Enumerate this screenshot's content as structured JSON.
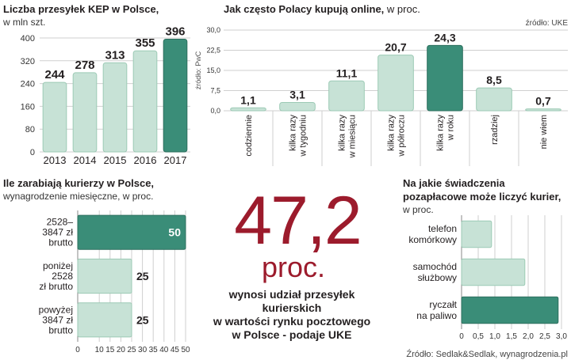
{
  "colors": {
    "bar_light": "#c7e2d6",
    "bar_light_stroke": "#9ccab5",
    "bar_dark": "#3a8d78",
    "bar_dark_stroke": "#2d6f5e",
    "accent": "#9c1b2c",
    "grid": "#cfcfcf"
  },
  "kep": {
    "title": "Liczba przesyłek KEP w Polsce,",
    "subtitle": "w mln szt."
  },
  "online": {
    "title": "Jak często Polacy kupują online,",
    "title_suffix": " w proc.",
    "source": "źródło: UKE",
    "pwc_source": "źródło: PwC"
  },
  "earnings": {
    "title": "Ile zarabiają kurierzy w Polsce,",
    "subtitle": "wynagrodzenie miesięczne, w proc."
  },
  "benefits": {
    "title_line1": "Na jakie świadczenia",
    "title_line2": "pozapłacowe może liczyć kurier,",
    "subtitle": "w proc."
  },
  "highlight": {
    "number": "47,2",
    "unit": "proc.",
    "line1": "wynosi udział przesyłek",
    "line2": "kurierskich",
    "line3": "w wartości rynku pocztowego",
    "line4": "w Polsce - podaje UKE"
  },
  "footer": {
    "source": "Źródło: Sedlak&Sedlak, wynagrodzenia.pl"
  },
  "chart_data": [
    {
      "type": "bar",
      "title": "Liczba przesyłek KEP w Polsce,",
      "ylabel": "w mln szt.",
      "categories": [
        "2013",
        "2014",
        "2015",
        "2016",
        "2017"
      ],
      "values": [
        244,
        278,
        313,
        355,
        396
      ],
      "value_labels": [
        "244",
        "278",
        "313",
        "355",
        "396"
      ],
      "yticks": [
        "0",
        "80",
        "160",
        "240",
        "320",
        "400"
      ],
      "ytick_values": [
        0,
        80,
        160,
        240,
        320,
        400
      ],
      "ylim": [
        0,
        400
      ],
      "highlight_index": 4,
      "grid": true
    },
    {
      "type": "bar",
      "title": "Jak często Polacy kupują online, w proc.",
      "categories": [
        [
          "codziennie"
        ],
        [
          "kilka razy",
          "w tygodniu"
        ],
        [
          "kilka razy",
          "w miesiącu"
        ],
        [
          "kilka razy",
          "w półroczu"
        ],
        [
          "kilka razy",
          "w roku"
        ],
        [
          "rzadziej"
        ],
        [
          "nie wiem"
        ]
      ],
      "values": [
        1.1,
        3.1,
        11.1,
        20.7,
        24.3,
        8.5,
        0.7
      ],
      "value_labels": [
        "1,1",
        "3,1",
        "11,1",
        "20,7",
        "24,3",
        "8,5",
        "0,7"
      ],
      "yticks": [
        "0,0",
        "7,5",
        "15,0",
        "22,5",
        "30,0"
      ],
      "ytick_values": [
        0,
        7.5,
        15,
        22.5,
        30
      ],
      "ylim": [
        0,
        30
      ],
      "highlight_index": 4,
      "grid": true
    },
    {
      "type": "bar",
      "orientation": "horizontal",
      "title": "Ile zarabiają kurierzy w Polsce,",
      "categories": [
        [
          "2528–",
          "3847 zł",
          "brutto"
        ],
        [
          "poniżej",
          "2528",
          "zł brutto"
        ],
        [
          "powyżej",
          "3847 zł",
          "brutto"
        ]
      ],
      "values": [
        50,
        25,
        25
      ],
      "value_labels": [
        "50",
        "25",
        "25"
      ],
      "xticks": [
        "0",
        "10",
        "15",
        "20",
        "25",
        "30",
        "35",
        "40",
        "45",
        "50"
      ],
      "xtick_values": [
        0,
        10,
        15,
        20,
        25,
        30,
        35,
        40,
        45,
        50
      ],
      "xlim": [
        0,
        50
      ],
      "highlight_index": 0,
      "grid": true
    },
    {
      "type": "bar",
      "orientation": "horizontal",
      "title": "Na jakie świadczenia pozapłacowe może liczyć kurier, w proc.",
      "categories": [
        [
          "telefon",
          "komórkowy"
        ],
        [
          "samochód",
          "służbowy"
        ],
        [
          "ryczałt",
          "na paliwo"
        ]
      ],
      "values": [
        0.9,
        1.9,
        2.9
      ],
      "xticks": [
        "0",
        "0,5",
        "1,0",
        "1,5",
        "2,0",
        "2,5",
        "3,0"
      ],
      "xtick_values": [
        0,
        0.5,
        1.0,
        1.5,
        2.0,
        2.5,
        3.0
      ],
      "xlim": [
        0,
        3
      ],
      "highlight_index": 2,
      "grid": true
    }
  ]
}
